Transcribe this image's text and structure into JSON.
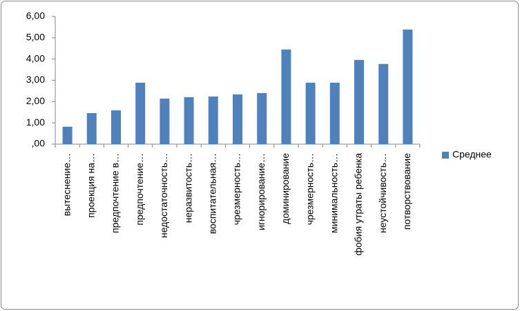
{
  "chart_data": {
    "type": "bar",
    "categories": [
      "вытеснение…",
      "проекция на…",
      "предпочтение в…",
      "предпочтение…",
      "недостаточность…",
      "неразвитость…",
      "воспитательная…",
      "чрезмерность…",
      "игнорирование…",
      "доминирование",
      "чрезмерность…",
      "минимальность…",
      "фобия утраты ребенка",
      "неустойчивость…",
      "потворствование"
    ],
    "series": [
      {
        "name": "Среднее",
        "color": "#4f81bd",
        "values": [
          0.82,
          1.46,
          1.59,
          2.89,
          2.14,
          2.21,
          2.24,
          2.34,
          2.4,
          4.45,
          2.89,
          2.89,
          3.96,
          3.77,
          5.39
        ]
      }
    ],
    "ylim": [
      0,
      6
    ],
    "yticks": [
      {
        "value": 0,
        "label": ",00"
      },
      {
        "value": 1,
        "label": "1,00"
      },
      {
        "value": 2,
        "label": "2,00"
      },
      {
        "value": 3,
        "label": "3,00"
      },
      {
        "value": 4,
        "label": "4,00"
      },
      {
        "value": 5,
        "label": "5,00"
      },
      {
        "value": 6,
        "label": "6,00"
      }
    ],
    "grid": false,
    "legend": "right"
  }
}
